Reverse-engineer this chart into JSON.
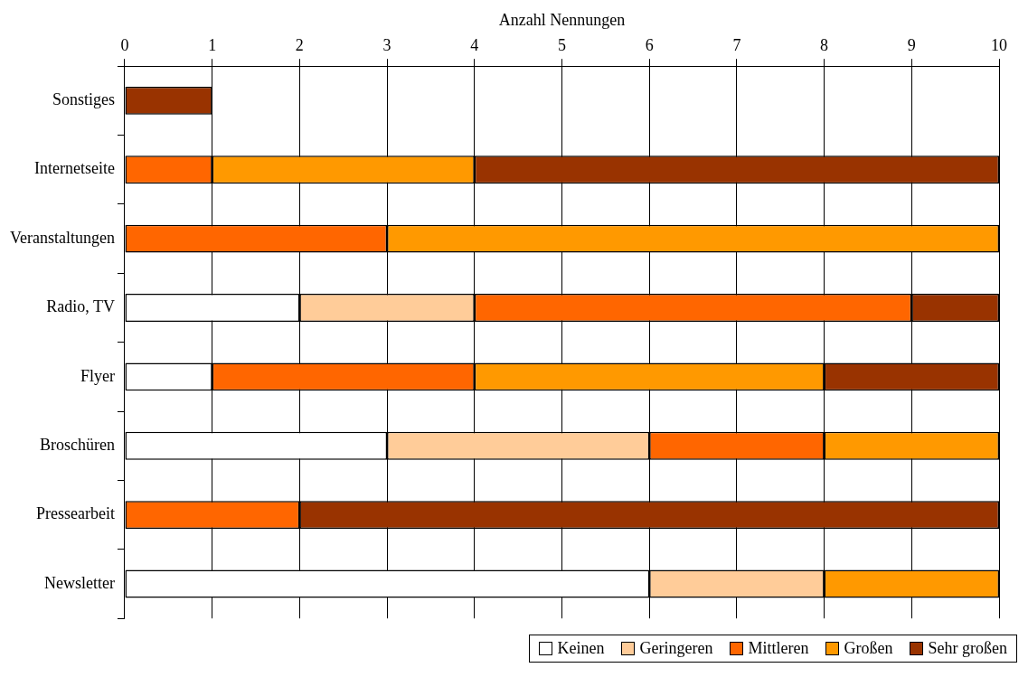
{
  "chart_data": {
    "type": "bar",
    "orientation": "horizontal",
    "stacked": true,
    "xlabel": "Anzahl Nennungen",
    "categories": [
      "Sonstiges",
      "Internetseite",
      "Veranstaltungen",
      "Radio, TV",
      "Flyer",
      "Broschüren",
      "Pressearbeit",
      "Newsletter"
    ],
    "series": [
      {
        "name": "Keinen",
        "color": "#ffffff",
        "values": [
          0,
          0,
          0,
          2,
          1,
          3,
          0,
          6
        ]
      },
      {
        "name": "Geringeren",
        "color": "#ffcc99",
        "values": [
          0,
          0,
          0,
          2,
          0,
          3,
          0,
          2
        ]
      },
      {
        "name": "Mittleren",
        "color": "#ff6600",
        "values": [
          0,
          1,
          3,
          5,
          3,
          2,
          2,
          0
        ]
      },
      {
        "name": "Großen",
        "color": "#ff9900",
        "values": [
          0,
          3,
          7,
          0,
          4,
          2,
          0,
          2
        ]
      },
      {
        "name": "Sehr großen",
        "color": "#993300",
        "values": [
          1,
          6,
          0,
          1,
          2,
          0,
          8,
          0
        ]
      }
    ],
    "xlim": [
      0,
      10
    ],
    "xticks": [
      0,
      1,
      2,
      3,
      4,
      5,
      6,
      7,
      8,
      9,
      10
    ],
    "grid": "x",
    "legend": "bottom right"
  }
}
